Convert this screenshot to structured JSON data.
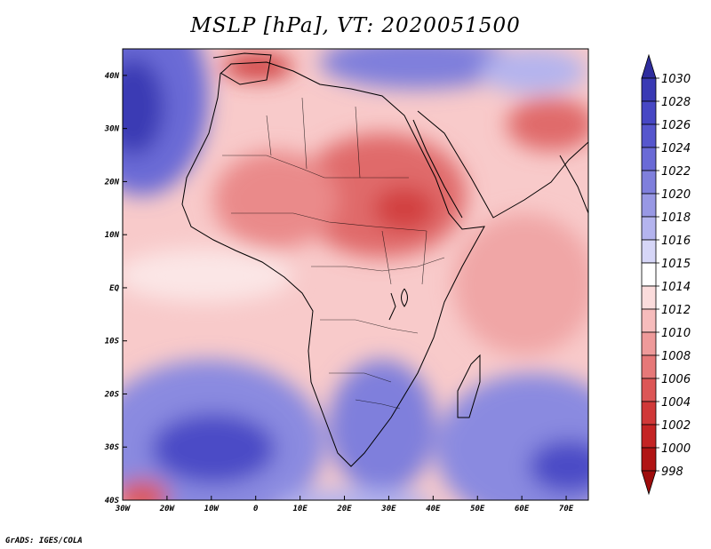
{
  "title": "MSLP [hPa], VT: 2020051500",
  "footer": "GrADS: IGES/COLA",
  "map": {
    "lon_range": [
      -30,
      75
    ],
    "lat_range": [
      -40,
      45
    ],
    "lat_ticks": [
      {
        "value": 40,
        "label": "40N"
      },
      {
        "value": 30,
        "label": "30N"
      },
      {
        "value": 20,
        "label": "20N"
      },
      {
        "value": 10,
        "label": "10N"
      },
      {
        "value": 0,
        "label": "EQ"
      },
      {
        "value": -10,
        "label": "10S"
      },
      {
        "value": -20,
        "label": "20S"
      },
      {
        "value": -30,
        "label": "30S"
      },
      {
        "value": -40,
        "label": "40S"
      }
    ],
    "lon_ticks": [
      {
        "value": -30,
        "label": "30W"
      },
      {
        "value": -20,
        "label": "20W"
      },
      {
        "value": -10,
        "label": "10W"
      },
      {
        "value": 0,
        "label": "0"
      },
      {
        "value": 10,
        "label": "10E"
      },
      {
        "value": 20,
        "label": "20E"
      },
      {
        "value": 30,
        "label": "30E"
      },
      {
        "value": 40,
        "label": "40E"
      },
      {
        "value": 50,
        "label": "50E"
      },
      {
        "value": 60,
        "label": "60E"
      },
      {
        "value": 70,
        "label": "70E"
      }
    ]
  },
  "colorbar": {
    "levels": [
      "1030",
      "1028",
      "1026",
      "1024",
      "1022",
      "1020",
      "1018",
      "1016",
      "1015",
      "1014",
      "1012",
      "1010",
      "1008",
      "1006",
      "1004",
      "1002",
      "1000",
      "998"
    ],
    "colors": [
      "#2f2d9e",
      "#3a3ab4",
      "#4747c4",
      "#5656cd",
      "#6a6ad6",
      "#7f7fdc",
      "#9898e4",
      "#b4b4ee",
      "#d6d6f7",
      "#ffffff",
      "#fbdcdc",
      "#f6bcbc",
      "#ee9a9a",
      "#e67878",
      "#dc5656",
      "#d03838",
      "#c42424",
      "#b01414",
      "#9e0c0c"
    ]
  }
}
